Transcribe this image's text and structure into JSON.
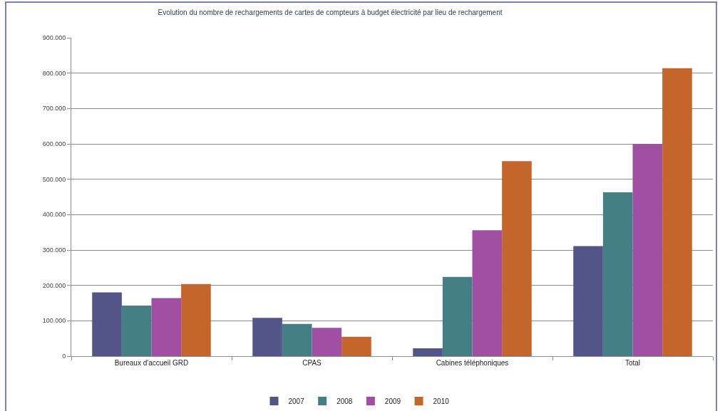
{
  "chart_data": {
    "type": "bar",
    "title": "Evolution du nombre de rechargements de cartes de compteurs à budget électricité par lieu de rechargement",
    "categories": [
      "Bureaux d'accueil GRD",
      "CPAS",
      "Cabines téléphoniques",
      "Total"
    ],
    "series": [
      {
        "name": "2007",
        "color": "#535589",
        "values": [
          180000,
          108000,
          22000,
          311000
        ]
      },
      {
        "name": "2008",
        "color": "#437f84",
        "values": [
          143000,
          91000,
          224000,
          463000
        ]
      },
      {
        "name": "2009",
        "color": "#a04fa3",
        "values": [
          164000,
          80000,
          356000,
          600000
        ]
      },
      {
        "name": "2010",
        "color": "#c4652c",
        "values": [
          204000,
          55000,
          551000,
          814000
        ]
      }
    ],
    "ylim": [
      0,
      900000
    ],
    "yticks": [
      0,
      {
        "value": 100000,
        "label": "100.000"
      },
      {
        "value": 200000,
        "label": "200.000"
      },
      {
        "value": 300000,
        "label": "300.000"
      },
      {
        "value": 400000,
        "label": "400.000"
      },
      {
        "value": 500000,
        "label": "500.000"
      },
      {
        "value": 600000,
        "label": "600.000"
      },
      {
        "value": 700000,
        "label": "700.000"
      },
      {
        "value": 800000,
        "label": "800.000"
      },
      {
        "value": 900000,
        "label": "900.000"
      }
    ],
    "grid": "y",
    "legend": "bottom"
  }
}
